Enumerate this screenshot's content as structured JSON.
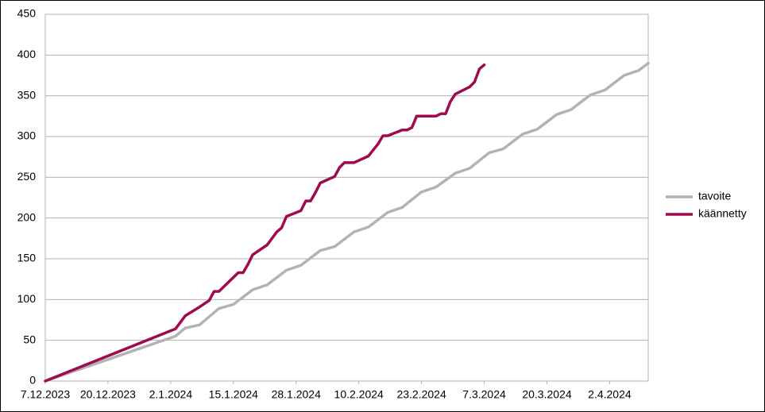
{
  "chart_data": {
    "type": "line",
    "xlim": [
      "2023-12-07",
      "2024-04-10"
    ],
    "xticks": [
      {
        "value": "2023-12-07",
        "label": "7.12.2023"
      },
      {
        "value": "2023-12-20",
        "label": "20.12.2023"
      },
      {
        "value": "2024-01-02",
        "label": "2.1.2024"
      },
      {
        "value": "2024-01-15",
        "label": "15.1.2024"
      },
      {
        "value": "2024-01-28",
        "label": "28.1.2024"
      },
      {
        "value": "2024-02-10",
        "label": "10.2.2024"
      },
      {
        "value": "2024-02-23",
        "label": "23.2.2024"
      },
      {
        "value": "2024-03-07",
        "label": "7.3.2024"
      },
      {
        "value": "2024-03-20",
        "label": "20.3.2024"
      },
      {
        "value": "2024-04-02",
        "label": "2.4.2024"
      }
    ],
    "ylim": [
      0,
      450
    ],
    "yticks": [
      0,
      50,
      100,
      150,
      200,
      250,
      300,
      350,
      400,
      450
    ],
    "grid": true,
    "legend": "right",
    "series": [
      {
        "name": "tavoite",
        "color": "#b3b3b3",
        "x": [
          "2023-12-07",
          "2024-01-03",
          "2024-01-05",
          "2024-01-08",
          "2024-01-12",
          "2024-01-15",
          "2024-01-19",
          "2024-01-22",
          "2024-01-26",
          "2024-01-29",
          "2024-02-02",
          "2024-02-05",
          "2024-02-09",
          "2024-02-12",
          "2024-02-16",
          "2024-02-19",
          "2024-02-23",
          "2024-02-26",
          "2024-03-01",
          "2024-03-04",
          "2024-03-08",
          "2024-03-11",
          "2024-03-15",
          "2024-03-18",
          "2024-03-22",
          "2024-03-25",
          "2024-03-29",
          "2024-04-01",
          "2024-04-05",
          "2024-04-08",
          "2024-04-10"
        ],
        "values": [
          0,
          55,
          65,
          69,
          89,
          94,
          112,
          118,
          136,
          142,
          160,
          165,
          183,
          189,
          207,
          213,
          232,
          238,
          255,
          261,
          280,
          285,
          303,
          309,
          327,
          333,
          351,
          357,
          375,
          381,
          390
        ]
      },
      {
        "name": "käännetty",
        "color": "#9e0b4f",
        "x": [
          "2023-12-07",
          "2024-01-03",
          "2024-01-05",
          "2024-01-08",
          "2024-01-10",
          "2024-01-11",
          "2024-01-12",
          "2024-01-16",
          "2024-01-17",
          "2024-01-18",
          "2024-01-19",
          "2024-01-22",
          "2024-01-23",
          "2024-01-24",
          "2024-01-25",
          "2024-01-26",
          "2024-01-29",
          "2024-01-30",
          "2024-01-31",
          "2024-02-01",
          "2024-02-02",
          "2024-02-05",
          "2024-02-06",
          "2024-02-07",
          "2024-02-09",
          "2024-02-12",
          "2024-02-14",
          "2024-02-15",
          "2024-02-16",
          "2024-02-19",
          "2024-02-20",
          "2024-02-21",
          "2024-02-22",
          "2024-02-26",
          "2024-02-27",
          "2024-02-28",
          "2024-02-29",
          "2024-03-01",
          "2024-03-04",
          "2024-03-05",
          "2024-03-06",
          "2024-03-07"
        ],
        "values": [
          0,
          64,
          80,
          91,
          99,
          110,
          110,
          133,
          133,
          143,
          155,
          167,
          175,
          183,
          188,
          202,
          209,
          221,
          221,
          231,
          243,
          251,
          262,
          268,
          268,
          276,
          291,
          301,
          301,
          308,
          308,
          311,
          325,
          325,
          328,
          328,
          343,
          352,
          361,
          367,
          383,
          388
        ]
      }
    ]
  }
}
